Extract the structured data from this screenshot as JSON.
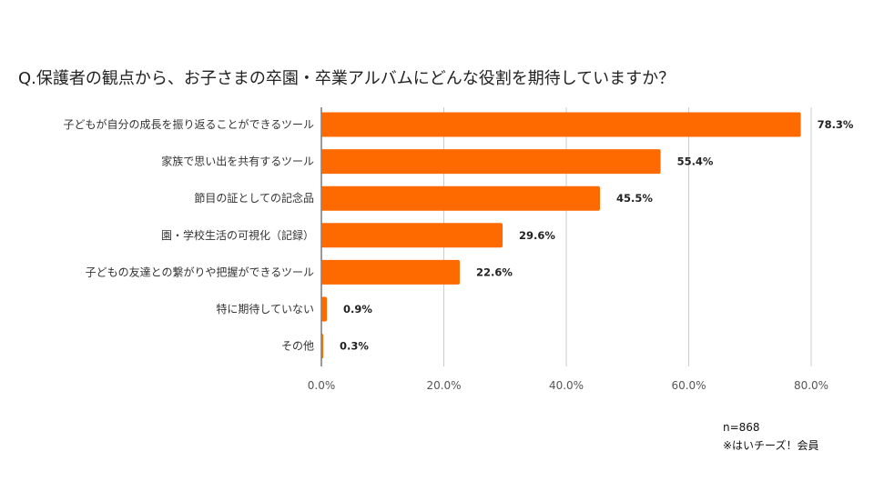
{
  "title": "Q.保護者の観点から、お子さまの卒園・卒業アルバムにどんな役割を期待していますか？",
  "notes": {
    "n": "n=868",
    "source": "※はいチーズ！会員"
  },
  "colors": {
    "bar": "#ff6a00",
    "grid": "#cccccc",
    "axis": "#333333"
  },
  "chart_data": {
    "type": "bar",
    "orientation": "horizontal",
    "title": "Q.保護者の観点から、お子さまの卒園・卒業アルバムにどんな役割を期待していますか？",
    "categories": [
      "子どもが自分の成長を振り返ることができるツール",
      "家族で思い出を共有するツール",
      "節目の証としての記念品",
      "園・学校生活の可視化（記録）",
      "子どもの友達との繋がりや把握ができるツール",
      "特に期待していない",
      "その他"
    ],
    "values": [
      78.3,
      55.4,
      45.5,
      29.6,
      22.6,
      0.9,
      0.3
    ],
    "value_labels": [
      "78.3%",
      "55.4%",
      "45.5%",
      "29.6%",
      "22.6%",
      "0.9%",
      "0.3%"
    ],
    "xlim": [
      0,
      80
    ],
    "ticks": [
      0,
      20,
      40,
      60,
      80
    ],
    "tick_labels": [
      "0.0%",
      "20.0%",
      "40.0%",
      "60.0%",
      "80.0%"
    ],
    "grid": true,
    "legend": "none"
  }
}
